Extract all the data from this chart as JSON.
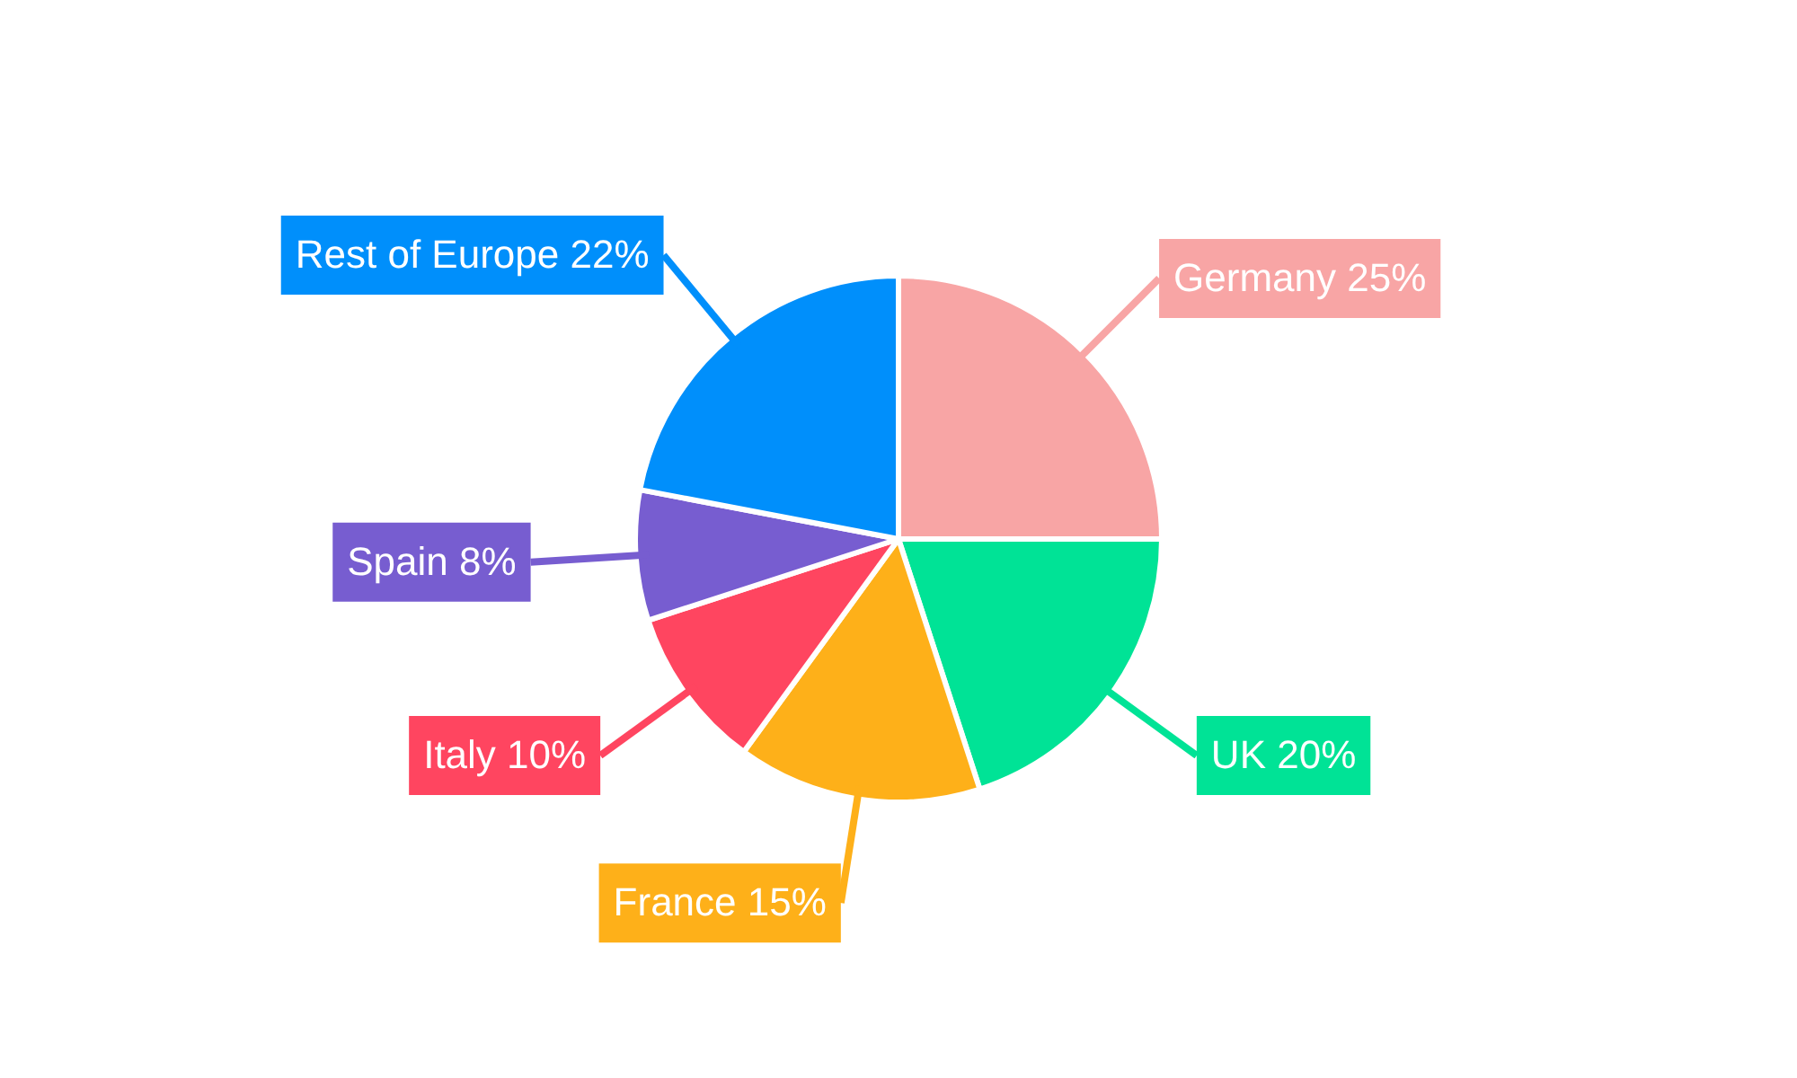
{
  "chart_data": {
    "type": "pie",
    "categories": [
      "Germany",
      "UK",
      "France",
      "Italy",
      "Spain",
      "Rest of Europe"
    ],
    "values": [
      25,
      20,
      15,
      10,
      8,
      22
    ],
    "value_labels": [
      "25%",
      "20%",
      "15%",
      "10%",
      "8%",
      "22%"
    ],
    "colors": [
      "#f8a5a5",
      "#00e396",
      "#feb019",
      "#ff4560",
      "#775dd0",
      "#008ffb"
    ],
    "legend": false
  }
}
